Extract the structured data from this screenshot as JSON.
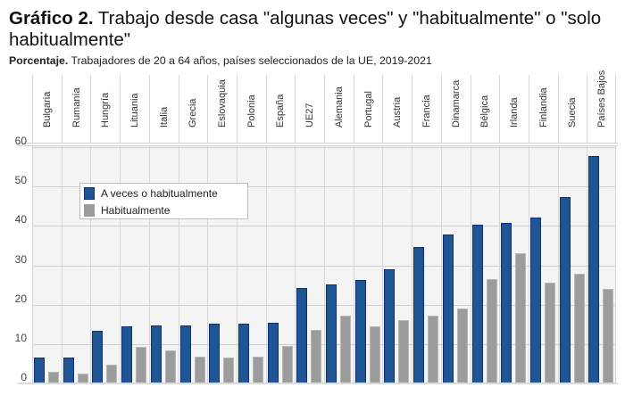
{
  "title": {
    "bold": "Gráfico 2.",
    "text": " Trabajo desde casa \"algunas veces\" y \"habitualmente\" o \"solo habitualmente\""
  },
  "subtitle": {
    "bold": "Porcentaje.",
    "text": " Trabajadores de 20 a 64 años, ",
    "bold2": "países seleccionados de la UE, 2019-2021"
  },
  "legend": {
    "items": [
      {
        "label": "A veces o habitualmente",
        "color": "#1f5592"
      },
      {
        "label": "Habitualmente",
        "color": "#9c9c9c"
      }
    ]
  },
  "yaxis": {
    "ticks": [
      "0",
      "10",
      "20",
      "30",
      "40",
      "50",
      "60"
    ]
  },
  "chart_data": {
    "type": "bar",
    "title": "Gráfico 2. Trabajo desde casa \"algunas veces\" y \"habitualmente\" o \"solo habitualmente\"",
    "subtitle": "Porcentaje. Trabajadores de 20 a 64 años, países seleccionados de la UE, 2019-2021",
    "xlabel": "",
    "ylabel": "",
    "ylim": [
      0,
      60
    ],
    "yticks": [
      0,
      10,
      20,
      30,
      40,
      50,
      60
    ],
    "grid": true,
    "legend_position": "upper-left inside plot",
    "categories": [
      "Bulgaria",
      "Rumanía",
      "Hungría",
      "Lituania",
      "Italia",
      "Grecia",
      "Eslovaquia",
      "Polonia",
      "España",
      "UE27",
      "Alemania",
      "Portugal",
      "Austria",
      "Francia",
      "Dinamarca",
      "Bélgica",
      "Irlanda",
      "Finlandia",
      "Suecia",
      "Países Bajos"
    ],
    "series": [
      {
        "name": "A veces o habitualmente",
        "color": "#1f5592",
        "values": [
          6.5,
          6.5,
          13.3,
          14.4,
          14.8,
          14.8,
          15.1,
          15.2,
          15.5,
          24.2,
          25.1,
          26.2,
          29.0,
          34.7,
          37.8,
          40.3,
          40.7,
          42.2,
          47.4,
          57.7
        ]
      },
      {
        "name": "Habitualmente",
        "color": "#9c9c9c",
        "values": [
          2.9,
          2.4,
          4.7,
          9.3,
          8.4,
          6.9,
          6.5,
          6.9,
          9.5,
          13.5,
          17.3,
          14.6,
          16.1,
          17.3,
          19.0,
          26.5,
          33.0,
          25.6,
          27.8,
          24.0
        ]
      }
    ]
  }
}
